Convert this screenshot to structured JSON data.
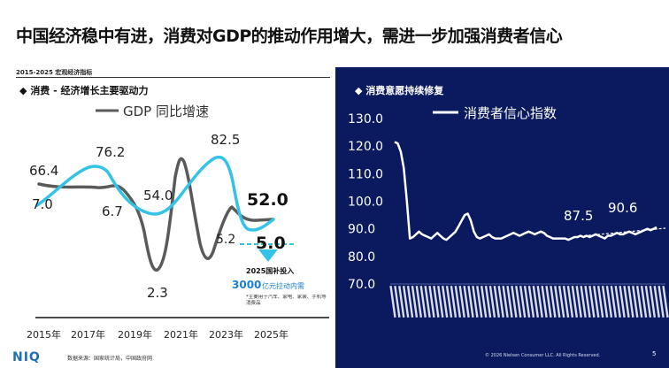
{
  "page_title": "中国经济稳中有进，消费对GDP的推动作用增大，需进一步加强消费者信心",
  "left_caption": "2015-2025 宏观经济指标",
  "left_section": "消费 - 经济增长主要驱动力",
  "right_section": "消费意愿持续修复",
  "bullet": "◆",
  "footer": {
    "logo": "NIQ",
    "source": "数据来源：国家统计局，中国政府网",
    "copyright": "© 2026 Nielsen Consumer LLC. All Rights Reserved.",
    "page": "5"
  },
  "colors": {
    "navy": "#0b1a5e",
    "cyan": "#34c3e6",
    "gray": "#5a5a5a",
    "white": "#ffffff"
  },
  "chart_data": [
    {
      "type": "line",
      "xlabel_ticks": [
        "2015年",
        "2017年",
        "2019年",
        "2021年",
        "2023年",
        "2025年"
      ],
      "x": [
        2015,
        2016,
        2017,
        2018,
        2019,
        2020,
        2021,
        2022,
        2023,
        2024,
        2025
      ],
      "series": [
        {
          "name": "GDP 同比增速",
          "color": "#5a5a5a",
          "values": [
            null,
            null,
            null,
            null,
            null,
            null,
            null,
            null,
            null,
            null,
            null
          ]
        },
        {
          "name": "",
          "color": "#34c3e6",
          "values": [
            null,
            null,
            null,
            null,
            null,
            null,
            null,
            null,
            null,
            null,
            null
          ]
        }
      ],
      "data_labels": [
        "66.4",
        "7.0",
        "76.2",
        "6.7",
        "54.0",
        "2.3",
        "82.5",
        "5.2",
        "52.0",
        "5.0"
      ],
      "annotation": {
        "title": "2025国补投入",
        "amount": "3000",
        "amount_suffix": " 亿元拉动内需",
        "note": "*主要用于汽车、家电、家装、手机等消费品"
      }
    },
    {
      "type": "line",
      "title": "消费者信心指数",
      "ylim": [
        70,
        130
      ],
      "yticks": [
        "130.0",
        "120.0",
        "110.0",
        "100.0",
        "90.0",
        "80.0",
        "70.0"
      ],
      "series": [
        {
          "name": "消费者信心指数",
          "color": "#ffffff",
          "values": [
            121.5,
            121.0,
            118.0,
            112.0,
            100.0,
            86.5,
            87.0,
            88.0,
            89.0,
            88.0,
            87.5,
            87.0,
            86.5,
            87.5,
            88.5,
            87.5,
            86.5,
            86.0,
            87.0,
            88.0,
            89.0,
            91.0,
            93.0,
            95.0,
            95.5,
            93.0,
            89.0,
            87.0,
            86.5,
            87.0,
            87.5,
            88.0,
            87.0,
            86.5,
            86.5,
            86.5,
            87.0,
            87.5,
            88.0,
            88.5,
            88.0,
            87.5,
            88.0,
            88.5,
            89.0,
            88.5,
            88.0,
            88.5,
            89.0,
            88.5,
            87.5,
            87.0,
            86.5,
            86.5,
            86.5,
            86.5,
            86.5,
            86.0,
            86.5,
            87.0,
            87.0,
            87.5,
            87.0,
            87.5,
            87.0,
            87.5,
            88.0,
            87.5,
            87.0,
            86.5,
            87.5,
            87.5,
            88.0,
            88.5,
            88.0,
            88.0,
            88.5,
            89.0,
            88.5,
            88.0,
            88.5,
            89.0,
            89.5,
            90.0,
            89.5,
            90.0,
            90.6
          ]
        }
      ],
      "data_labels": [
        "87.5",
        "90.6"
      ]
    }
  ]
}
